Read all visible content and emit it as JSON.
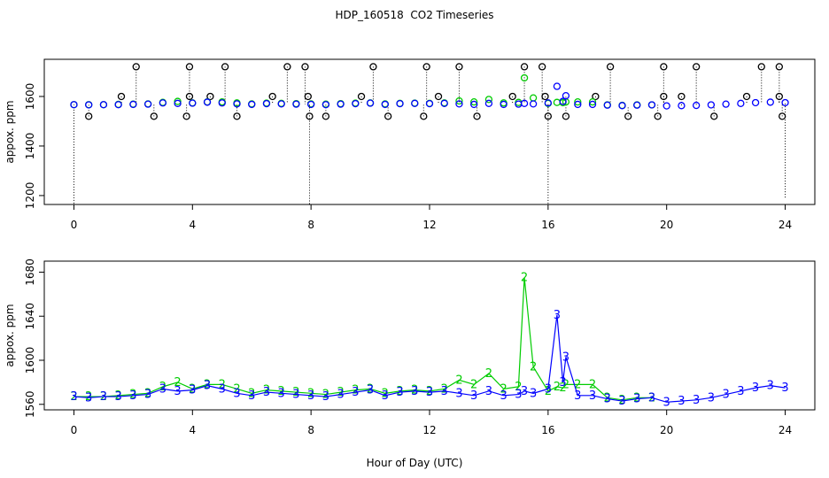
{
  "chart_data": [
    {
      "type": "scatter",
      "title": "HDP_160518  CO2 Timeseries",
      "ylabel": "appox. ppm",
      "xlim": [
        -1,
        25
      ],
      "xticks": [
        0,
        4,
        8,
        12,
        16,
        20,
        24
      ],
      "ylim": [
        1164,
        1750
      ],
      "yticks": [
        1200,
        1400,
        1600
      ],
      "x": [
        0,
        0.5,
        1,
        1.5,
        2,
        2.5,
        3,
        3.5,
        4,
        4.5,
        5,
        5.5,
        6,
        6.5,
        7,
        7.5,
        8,
        8.5,
        9,
        9.5,
        10,
        10.5,
        11,
        11.5,
        12,
        12.5,
        13,
        13.5,
        14,
        14.5,
        15,
        15.2,
        15.5,
        16,
        16.3,
        16.5,
        16.6,
        17,
        17.5,
        18,
        18.5,
        19,
        19.5,
        20,
        20.5,
        21,
        21.5,
        22,
        22.5,
        23,
        23.5,
        24
      ],
      "series": [
        {
          "color": "#00cc00",
          "values": [
            1567,
            1567,
            1567,
            1568,
            1569,
            1570,
            1576,
            1580,
            1574,
            1578,
            1578,
            1574,
            1570,
            1573,
            1572,
            1571,
            1570,
            1569,
            1571,
            1573,
            1574,
            1570,
            1572,
            1573,
            1572,
            1574,
            1582,
            1578,
            1588,
            1574,
            1576,
            1675,
            1594,
            1572,
            1576,
            1575,
            1578,
            1578,
            1578,
            1566,
            1564,
            1566,
            1566,
            null,
            null,
            null,
            null,
            null,
            null,
            null,
            null,
            null
          ]
        },
        {
          "color": "#0000ff",
          "values": [
            1567,
            1566,
            1567,
            1567,
            1568,
            1569,
            1574,
            1572,
            1573,
            1577,
            1574,
            1570,
            1568,
            1571,
            1570,
            1569,
            1568,
            1567,
            1569,
            1571,
            1573,
            1568,
            1571,
            1572,
            1571,
            1572,
            1570,
            1568,
            1572,
            1568,
            1569,
            1572,
            1570,
            1574,
            1641,
            1580,
            1603,
            1568,
            1568,
            1565,
            1563,
            1565,
            1566,
            1562,
            1563,
            1564,
            1566,
            1569,
            1572,
            1575,
            1577,
            1575
          ]
        }
      ],
      "outliers": {
        "color": "#000000",
        "x": [
          2.1,
          3.9,
          5.1,
          7.2,
          7.8,
          10.1,
          11.9,
          13,
          15.2,
          15.8,
          18.1,
          19.9,
          21,
          23.2,
          23.8,
          1.6,
          3.9,
          4.6,
          6.7,
          7.9,
          9.7,
          12.3,
          14.8,
          15.9,
          17.6,
          19.9,
          20.5,
          22.7,
          23.8,
          0.5,
          2.7,
          3.8,
          5.5,
          7.95,
          8.5,
          10.6,
          11.8,
          13.6,
          16,
          16.6,
          18.7,
          19.7,
          21.6,
          23.9
        ],
        "values": [
          1720,
          1720,
          1720,
          1720,
          1720,
          1720,
          1720,
          1720,
          1720,
          1720,
          1720,
          1720,
          1720,
          1720,
          1720,
          1600,
          1600,
          1600,
          1600,
          1600,
          1600,
          1600,
          1600,
          1600,
          1600,
          1600,
          1600,
          1600,
          1600,
          1520,
          1520,
          1520,
          1520,
          1520,
          1520,
          1520,
          1520,
          1520,
          1520,
          1520,
          1520,
          1520,
          1520,
          1520
        ]
      },
      "drops": {
        "color": "#000000",
        "x": [
          0,
          7.95,
          16,
          24
        ],
        "values": [
          1168,
          1166,
          1168,
          1192
        ]
      }
    },
    {
      "type": "line",
      "ylabel": "appox. ppm",
      "xlabel": "Hour of Day (UTC)",
      "xlim": [
        -1,
        25
      ],
      "xticks": [
        0,
        4,
        8,
        12,
        16,
        20,
        24
      ],
      "ylim": [
        1555,
        1690
      ],
      "yticks": [
        1560,
        1600,
        1640,
        1680
      ],
      "x": [
        0,
        0.5,
        1,
        1.5,
        2,
        2.5,
        3,
        3.5,
        4,
        4.5,
        5,
        5.5,
        6,
        6.5,
        7,
        7.5,
        8,
        8.5,
        9,
        9.5,
        10,
        10.5,
        11,
        11.5,
        12,
        12.5,
        13,
        13.5,
        14,
        14.5,
        15,
        15.2,
        15.5,
        16,
        16.3,
        16.5,
        16.6,
        17,
        17.5,
        18,
        18.5,
        19,
        19.5,
        20,
        20.5,
        21,
        21.5,
        22,
        22.5,
        23,
        23.5,
        24
      ],
      "series": [
        {
          "color": "#00cc00",
          "marker": "2",
          "values": [
            1567,
            1567,
            1567,
            1568,
            1569,
            1570,
            1576,
            1580,
            1574,
            1578,
            1578,
            1574,
            1570,
            1573,
            1572,
            1571,
            1570,
            1569,
            1571,
            1573,
            1574,
            1570,
            1572,
            1573,
            1572,
            1574,
            1582,
            1578,
            1588,
            1574,
            1576,
            1675,
            1594,
            1572,
            1576,
            1575,
            1578,
            1578,
            1578,
            1566,
            1564,
            1566,
            1566,
            null,
            null,
            null,
            null,
            null,
            null,
            null,
            null,
            null
          ]
        },
        {
          "color": "#0000ff",
          "marker": "3",
          "values": [
            1567,
            1566,
            1567,
            1567,
            1568,
            1569,
            1574,
            1572,
            1573,
            1577,
            1574,
            1570,
            1568,
            1571,
            1570,
            1569,
            1568,
            1567,
            1569,
            1571,
            1573,
            1568,
            1571,
            1572,
            1571,
            1572,
            1570,
            1568,
            1572,
            1568,
            1569,
            1572,
            1570,
            1574,
            1641,
            1580,
            1603,
            1568,
            1568,
            1565,
            1563,
            1565,
            1566,
            1562,
            1563,
            1564,
            1566,
            1569,
            1572,
            1575,
            1577,
            1575
          ]
        }
      ]
    }
  ]
}
